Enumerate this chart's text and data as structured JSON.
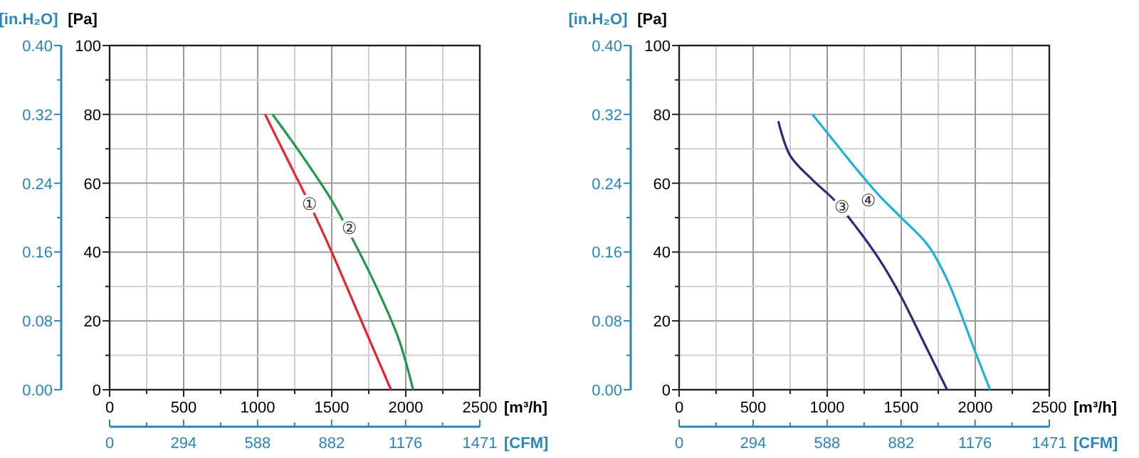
{
  "chart_data": [
    {
      "type": "line",
      "ylabel": "[Pa]",
      "y2label": "[in.H₂O]",
      "xlabel": "[m³/h]",
      "x2label": "[CFM]",
      "grid": true,
      "line_style": "solid",
      "marker": "none",
      "xlim": [
        0,
        2500
      ],
      "xticks": [
        0,
        {
          "value": 250,
          "label": null
        },
        500,
        {
          "value": 750,
          "label": null
        },
        1000,
        {
          "value": 1250,
          "label": null
        },
        1500,
        {
          "value": 1750,
          "label": null
        },
        2000,
        {
          "value": 2250,
          "label": null
        },
        2500
      ],
      "ylim": [
        0,
        100
      ],
      "yticks": [
        0,
        {
          "value": 10,
          "label": null
        },
        20,
        {
          "value": 30,
          "label": null
        },
        40,
        {
          "value": 50,
          "label": null
        },
        60,
        {
          "value": 70,
          "label": null
        },
        80,
        {
          "value": 90,
          "label": null
        },
        100
      ],
      "y2lim": [
        0,
        0.4
      ],
      "y2ticks": [
        {
          "value": 0,
          "label": "0.00"
        },
        {
          "value": 0.04,
          "label": null
        },
        0.08,
        {
          "value": 0.12,
          "label": null
        },
        0.16,
        {
          "value": 0.2,
          "label": null
        },
        0.24,
        {
          "value": 0.28,
          "label": null
        },
        0.32,
        {
          "value": 0.36,
          "label": null
        },
        {
          "value": 0.4,
          "label": "0.40"
        }
      ],
      "x2lim": [
        0,
        1471
      ],
      "x2ticks": [
        0,
        {
          "value": 147,
          "label": null
        },
        294,
        {
          "value": 441,
          "label": null
        },
        588,
        {
          "value": 735,
          "label": null
        },
        882,
        {
          "value": 1029,
          "label": null
        },
        1176,
        {
          "value": 1323,
          "label": null
        },
        1471
      ],
      "series": [
        {
          "color": "#e8232b",
          "x": [
            1050,
            1200,
            1350,
            1500,
            1650,
            1800,
            1900
          ],
          "values": [
            80,
            67,
            54,
            40,
            25,
            10,
            0
          ]
        },
        {
          "color": "#1a9a4a",
          "x": [
            1100,
            1300,
            1500,
            1650,
            1800,
            1950,
            2050
          ],
          "values": [
            80,
            68,
            55,
            43,
            30,
            15,
            0
          ]
        }
      ],
      "annotations": [
        {
          "text": "①",
          "x": 1350,
          "y": 54
        },
        {
          "text": "②",
          "x": 1620,
          "y": 47
        }
      ]
    },
    {
      "type": "line",
      "ylabel": "[Pa]",
      "y2label": "[in.H₂O]",
      "xlabel": "[m³/h]",
      "x2label": "[CFM]",
      "grid": true,
      "line_style": "solid",
      "marker": "none",
      "xlim": [
        0,
        2500
      ],
      "xticks": [
        0,
        {
          "value": 250,
          "label": null
        },
        500,
        {
          "value": 750,
          "label": null
        },
        1000,
        {
          "value": 1250,
          "label": null
        },
        1500,
        {
          "value": 1750,
          "label": null
        },
        2000,
        {
          "value": 2250,
          "label": null
        },
        2500
      ],
      "ylim": [
        0,
        100
      ],
      "yticks": [
        0,
        {
          "value": 10,
          "label": null
        },
        20,
        {
          "value": 30,
          "label": null
        },
        40,
        {
          "value": 50,
          "label": null
        },
        60,
        {
          "value": 70,
          "label": null
        },
        80,
        {
          "value": 90,
          "label": null
        },
        100
      ],
      "y2lim": [
        0,
        0.4
      ],
      "y2ticks": [
        {
          "value": 0,
          "label": "0.00"
        },
        {
          "value": 0.04,
          "label": null
        },
        0.08,
        {
          "value": 0.12,
          "label": null
        },
        0.16,
        {
          "value": 0.2,
          "label": null
        },
        0.24,
        {
          "value": 0.28,
          "label": null
        },
        0.32,
        {
          "value": 0.36,
          "label": null
        },
        {
          "value": 0.4,
          "label": "0.40"
        }
      ],
      "x2lim": [
        0,
        1471
      ],
      "x2ticks": [
        0,
        {
          "value": 147,
          "label": null
        },
        294,
        {
          "value": 441,
          "label": null
        },
        588,
        {
          "value": 735,
          "label": null
        },
        882,
        {
          "value": 1029,
          "label": null
        },
        1176,
        {
          "value": 1323,
          "label": null
        },
        1471
      ],
      "series": [
        {
          "color": "#2b2a7a",
          "x": [
            670,
            750,
            900,
            1050,
            1200,
            1350,
            1500,
            1650,
            1810
          ],
          "values": [
            78,
            68,
            61,
            55,
            47,
            38,
            27,
            14,
            0
          ]
        },
        {
          "color": "#1fb0e0",
          "x": [
            900,
            1050,
            1200,
            1360,
            1500,
            1680,
            1810,
            2000,
            2100
          ],
          "values": [
            80,
            72,
            64,
            56,
            50,
            42,
            32,
            11,
            0
          ]
        }
      ],
      "annotations": [
        {
          "text": "③",
          "x": 1100,
          "y": 53
        },
        {
          "text": "④",
          "x": 1280,
          "y": 55
        }
      ]
    }
  ]
}
